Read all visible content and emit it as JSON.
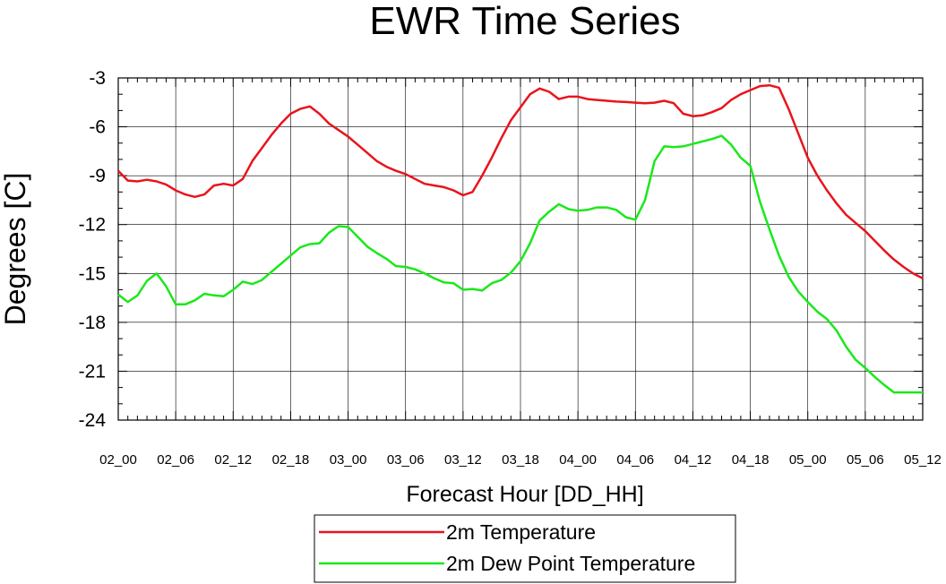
{
  "chart_data": {
    "type": "line",
    "title": "EWR Time Series",
    "xlabel": "Forecast Hour [DD_HH]",
    "ylabel": "Degrees [C]",
    "xlim": [
      0,
      84
    ],
    "ylim": [
      -24,
      -3
    ],
    "yticks": [
      -3,
      -6,
      -9,
      -12,
      -15,
      -18,
      -21,
      -24
    ],
    "xticks": [
      {
        "x": 0,
        "label": "02_00"
      },
      {
        "x": 6,
        "label": "02_06"
      },
      {
        "x": 12,
        "label": "02_12"
      },
      {
        "x": 18,
        "label": "02_18"
      },
      {
        "x": 24,
        "label": "03_00"
      },
      {
        "x": 30,
        "label": "03_06"
      },
      {
        "x": 36,
        "label": "03_12"
      },
      {
        "x": 42,
        "label": "03_18"
      },
      {
        "x": 48,
        "label": "04_00"
      },
      {
        "x": 54,
        "label": "04_06"
      },
      {
        "x": 60,
        "label": "04_12"
      },
      {
        "x": 66,
        "label": "04_18"
      },
      {
        "x": 72,
        "label": "05_00"
      },
      {
        "x": 78,
        "label": "05_06"
      },
      {
        "x": 84,
        "label": "05_12"
      }
    ],
    "grid": true,
    "legend_position": "bottom-center",
    "series": [
      {
        "name": "2m Temperature",
        "color": "#e8141c",
        "x": [
          0,
          1,
          2,
          3,
          4,
          5,
          6,
          7,
          8,
          9,
          10,
          11,
          12,
          13,
          14,
          15,
          16,
          17,
          18,
          19,
          20,
          21,
          22,
          23,
          24,
          25,
          26,
          27,
          28,
          29,
          30,
          31,
          32,
          33,
          34,
          35,
          36,
          37,
          38,
          39,
          40,
          41,
          42,
          43,
          44,
          45,
          46,
          47,
          48,
          49,
          50,
          51,
          52,
          53,
          54,
          55,
          56,
          57,
          58,
          59,
          60,
          61,
          62,
          63,
          64,
          65,
          66,
          67,
          68,
          69,
          70,
          71,
          72,
          73,
          74,
          75,
          76,
          77,
          78,
          79,
          80,
          81,
          82,
          83,
          84
        ],
        "y": [
          -8.7,
          -9.3,
          -9.35,
          -9.25,
          -9.35,
          -9.55,
          -9.9,
          -10.15,
          -10.3,
          -10.15,
          -9.6,
          -9.5,
          -9.6,
          -9.2,
          -8.1,
          -7.3,
          -6.5,
          -5.8,
          -5.2,
          -4.9,
          -4.75,
          -5.2,
          -5.8,
          -6.2,
          -6.6,
          -7.1,
          -7.6,
          -8.1,
          -8.45,
          -8.7,
          -8.9,
          -9.2,
          -9.5,
          -9.6,
          -9.7,
          -9.9,
          -10.2,
          -10,
          -9,
          -7.9,
          -6.7,
          -5.6,
          -4.8,
          -4,
          -3.65,
          -3.85,
          -4.3,
          -4.15,
          -4.15,
          -4.3,
          -4.35,
          -4.4,
          -4.45,
          -4.48,
          -4.52,
          -4.55,
          -4.52,
          -4.4,
          -4.55,
          -5.2,
          -5.35,
          -5.3,
          -5.1,
          -4.85,
          -4.35,
          -4.0,
          -3.75,
          -3.5,
          -3.45,
          -3.6,
          -4.9,
          -6.4,
          -7.9,
          -9.0,
          -9.9,
          -10.7,
          -11.4,
          -11.9,
          -12.4,
          -13,
          -13.6,
          -14.15,
          -14.6,
          -15,
          -15.3
        ]
      },
      {
        "name": "2m Dew Point Temperature",
        "color": "#1be81b",
        "x": [
          0,
          1,
          2,
          3,
          4,
          5,
          6,
          7,
          8,
          9,
          10,
          11,
          12,
          13,
          14,
          15,
          16,
          17,
          18,
          19,
          20,
          21,
          22,
          23,
          24,
          25,
          26,
          27,
          28,
          29,
          30,
          31,
          32,
          33,
          34,
          35,
          36,
          37,
          38,
          39,
          40,
          41,
          42,
          43,
          44,
          45,
          46,
          47,
          48,
          49,
          50,
          51,
          52,
          53,
          54,
          55,
          56,
          57,
          58,
          59,
          60,
          61,
          62,
          63,
          64,
          65,
          66,
          67,
          68,
          69,
          70,
          71,
          72,
          73,
          74,
          75,
          76,
          77,
          78,
          79,
          80,
          81,
          82,
          83,
          84
        ],
        "y": [
          -16.3,
          -16.75,
          -16.35,
          -15.45,
          -15,
          -15.8,
          -16.9,
          -16.9,
          -16.65,
          -16.25,
          -16.35,
          -16.4,
          -16,
          -15.5,
          -15.65,
          -15.4,
          -14.9,
          -14.4,
          -13.9,
          -13.4,
          -13.2,
          -13.15,
          -12.5,
          -12.1,
          -12.15,
          -12.75,
          -13.35,
          -13.75,
          -14.1,
          -14.55,
          -14.6,
          -14.75,
          -15,
          -15.3,
          -15.55,
          -15.6,
          -16,
          -15.95,
          -16.05,
          -15.6,
          -15.4,
          -14.95,
          -14.25,
          -13.15,
          -11.75,
          -11.2,
          -10.75,
          -11.05,
          -11.15,
          -11.1,
          -10.95,
          -10.95,
          -11.1,
          -11.55,
          -11.7,
          -10.5,
          -8.1,
          -7.2,
          -7.25,
          -7.2,
          -7.05,
          -6.9,
          -6.75,
          -6.55,
          -7.1,
          -7.9,
          -8.4,
          -10.6,
          -12.3,
          -13.9,
          -15.2,
          -16.1,
          -16.75,
          -17.35,
          -17.8,
          -18.5,
          -19.5,
          -20.3,
          -20.8,
          -21.35,
          -21.85,
          -22.3,
          -22.3,
          -22.3,
          -22.3
        ]
      }
    ]
  }
}
